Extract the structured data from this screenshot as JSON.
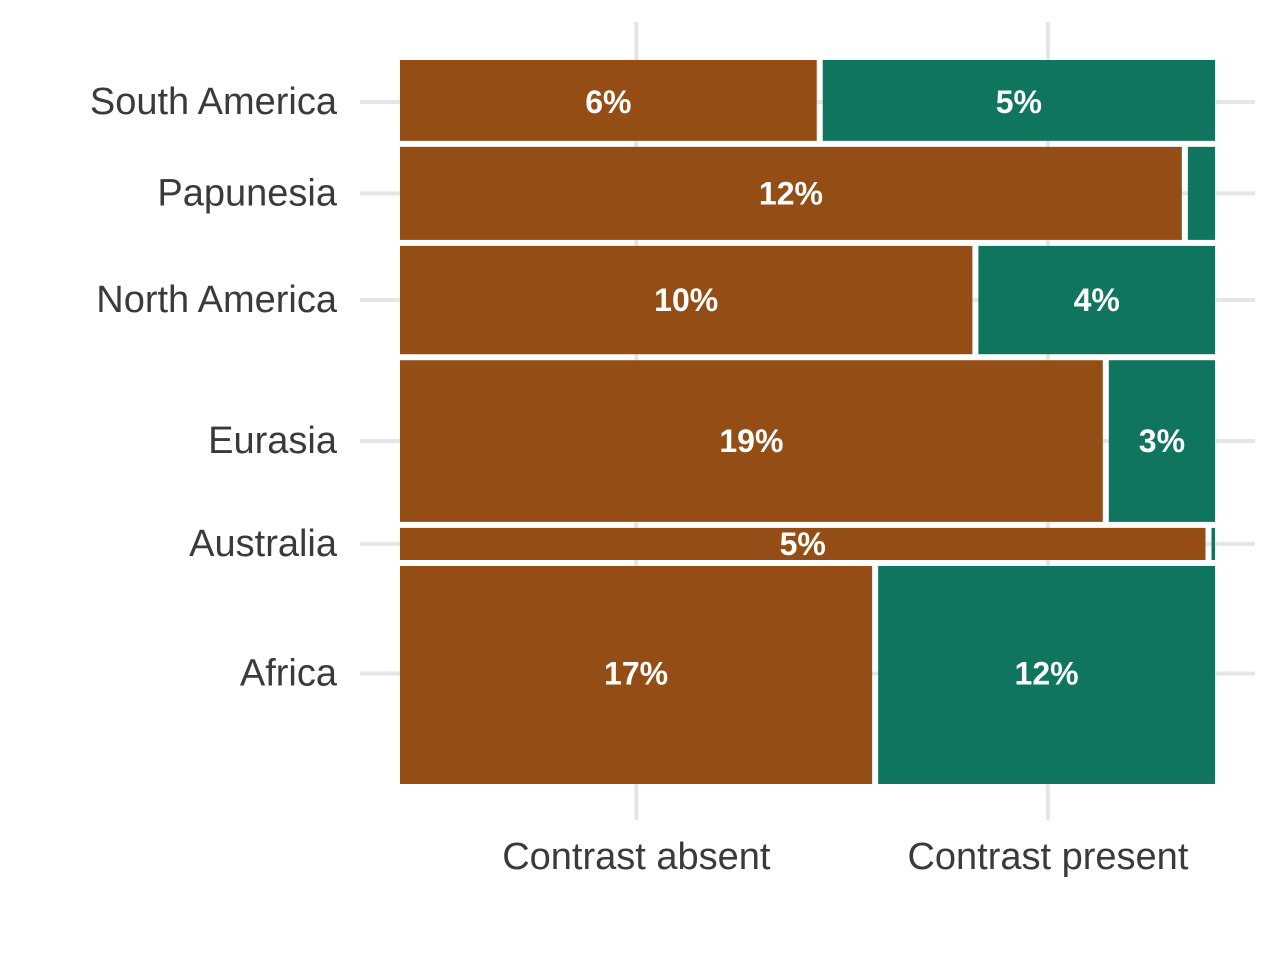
{
  "chart_data": {
    "type": "bar",
    "subtype": "mosaic",
    "title": "",
    "xlabel": "",
    "ylabel": "",
    "grid": true,
    "legend": "none",
    "categories": [
      "South America",
      "Papunesia",
      "North America",
      "Eurasia",
      "Australia",
      "Africa"
    ],
    "x_categories": [
      "Contrast absent",
      "Contrast present"
    ],
    "row_share": [
      0.11,
      0.13,
      0.15,
      0.22,
      0.05,
      0.29
    ],
    "series": [
      {
        "name": "Contrast absent",
        "color": "#944e15",
        "values": [
          0.515,
          0.963,
          0.706,
          0.866,
          0.992,
          0.583
        ],
        "labels": [
          "6%",
          "12%",
          "10%",
          "19%",
          "5%",
          "17%"
        ]
      },
      {
        "name": "Contrast present",
        "color": "#0f755e",
        "values": [
          0.485,
          0.037,
          0.294,
          0.134,
          0.008,
          0.417
        ],
        "labels": [
          "5%",
          "",
          "4%",
          "3%",
          "",
          "12%"
        ]
      }
    ],
    "x_tick_positions": [
      0.29,
      0.795
    ]
  }
}
